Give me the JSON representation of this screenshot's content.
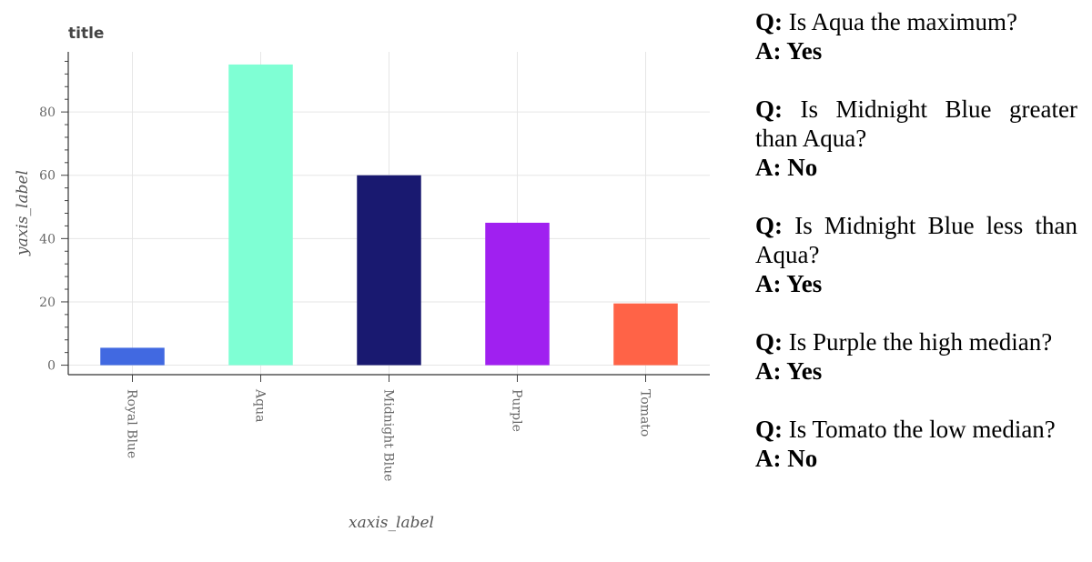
{
  "chart_data": {
    "type": "bar",
    "title": "title",
    "xlabel": "xaxis_label",
    "ylabel": "yaxis_label",
    "categories": [
      "Royal Blue",
      "Aqua",
      "Midnight Blue",
      "Purple",
      "Tomato"
    ],
    "values": [
      5.5,
      95,
      60,
      45,
      19.5
    ],
    "colors": [
      "#4169e1",
      "#7fffd4",
      "#191970",
      "#a020f0",
      "#ff6347"
    ],
    "ylim": [
      -3,
      99
    ],
    "yticks": [
      0,
      20,
      40,
      60,
      80
    ],
    "grid": true
  },
  "qa": [
    {
      "q_prefix": "Q:",
      "q_text": " Is Aqua the maximum?",
      "a": "A: Yes"
    },
    {
      "q_prefix": "Q:",
      "q_text": " Is Midnight Blue greater than Aqua?",
      "a": "A: No"
    },
    {
      "q_prefix": "Q:",
      "q_text": " Is Midnight Blue less than Aqua?",
      "a": "A: Yes"
    },
    {
      "q_prefix": "Q:",
      "q_text": " Is Purple the high median?",
      "a": "A: Yes"
    },
    {
      "q_prefix": "Q:",
      "q_text": " Is Tomato the low median?",
      "a": "A: No"
    }
  ]
}
